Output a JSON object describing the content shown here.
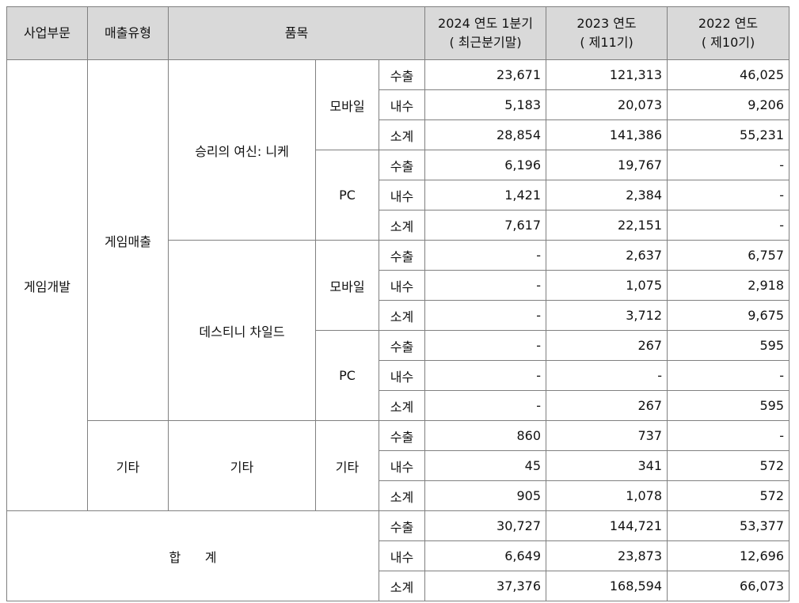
{
  "headers": {
    "division": "사업부문",
    "sales_type": "매출유형",
    "item": "품목",
    "col2024_line1": "2024 연도 1분기",
    "col2024_line2": "( 최근분기말)",
    "col2023_line1": "2023 연도",
    "col2023_line2": "( 제11기)",
    "col2022_line1": "2022 연도",
    "col2022_line2": "( 제10기)"
  },
  "labels": {
    "division_game": "게임개발",
    "type_game_sales": "게임매출",
    "type_other": "기타",
    "product_nikke": "승리의 여신: 니케",
    "product_destiny": "데스티니 차일드",
    "product_other": "기타",
    "platform_mobile": "모바일",
    "platform_pc": "PC",
    "platform_other": "기타",
    "total": "합      계"
  },
  "row_kinds": [
    "수출",
    "내수",
    "소계"
  ],
  "rows": [
    {
      "kind": "수출",
      "v2024": "23,671",
      "v2023": "121,313",
      "v2022": "46,025"
    },
    {
      "kind": "내수",
      "v2024": "5,183",
      "v2023": "20,073",
      "v2022": "9,206"
    },
    {
      "kind": "소계",
      "v2024": "28,854",
      "v2023": "141,386",
      "v2022": "55,231"
    },
    {
      "kind": "수출",
      "v2024": "6,196",
      "v2023": "19,767",
      "v2022": "-"
    },
    {
      "kind": "내수",
      "v2024": "1,421",
      "v2023": "2,384",
      "v2022": "-"
    },
    {
      "kind": "소계",
      "v2024": "7,617",
      "v2023": "22,151",
      "v2022": "-"
    },
    {
      "kind": "수출",
      "v2024": "-",
      "v2023": "2,637",
      "v2022": "6,757"
    },
    {
      "kind": "내수",
      "v2024": "-",
      "v2023": "1,075",
      "v2022": "2,918"
    },
    {
      "kind": "소계",
      "v2024": "-",
      "v2023": "3,712",
      "v2022": "9,675"
    },
    {
      "kind": "수출",
      "v2024": "-",
      "v2023": "267",
      "v2022": "595"
    },
    {
      "kind": "내수",
      "v2024": "-",
      "v2023": "-",
      "v2022": "-"
    },
    {
      "kind": "소계",
      "v2024": "-",
      "v2023": "267",
      "v2022": "595"
    },
    {
      "kind": "수출",
      "v2024": "860",
      "v2023": "737",
      "v2022": "-"
    },
    {
      "kind": "내수",
      "v2024": "45",
      "v2023": "341",
      "v2022": "572"
    },
    {
      "kind": "소계",
      "v2024": "905",
      "v2023": "1,078",
      "v2022": "572"
    },
    {
      "kind": "수출",
      "v2024": "30,727",
      "v2023": "144,721",
      "v2022": "53,377"
    },
    {
      "kind": "내수",
      "v2024": "6,649",
      "v2023": "23,873",
      "v2022": "12,696"
    },
    {
      "kind": "소계",
      "v2024": "37,376",
      "v2023": "168,594",
      "v2022": "66,073"
    }
  ]
}
